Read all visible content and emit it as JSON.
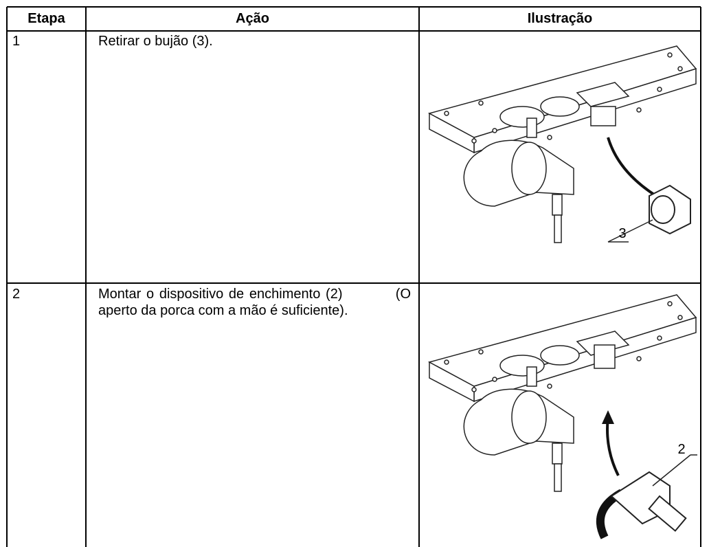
{
  "table": {
    "header": [
      "Etapa",
      "Ação",
      "Ilustração"
    ],
    "rows": [
      {
        "step": "1",
        "action": "Retirar o bujão (3).",
        "callout": "3"
      },
      {
        "step": "2",
        "action": "Montar o dispositivo de enchimento (2)          (O aperto da porca com a mão é suficiente).",
        "callout": "2"
      }
    ]
  }
}
